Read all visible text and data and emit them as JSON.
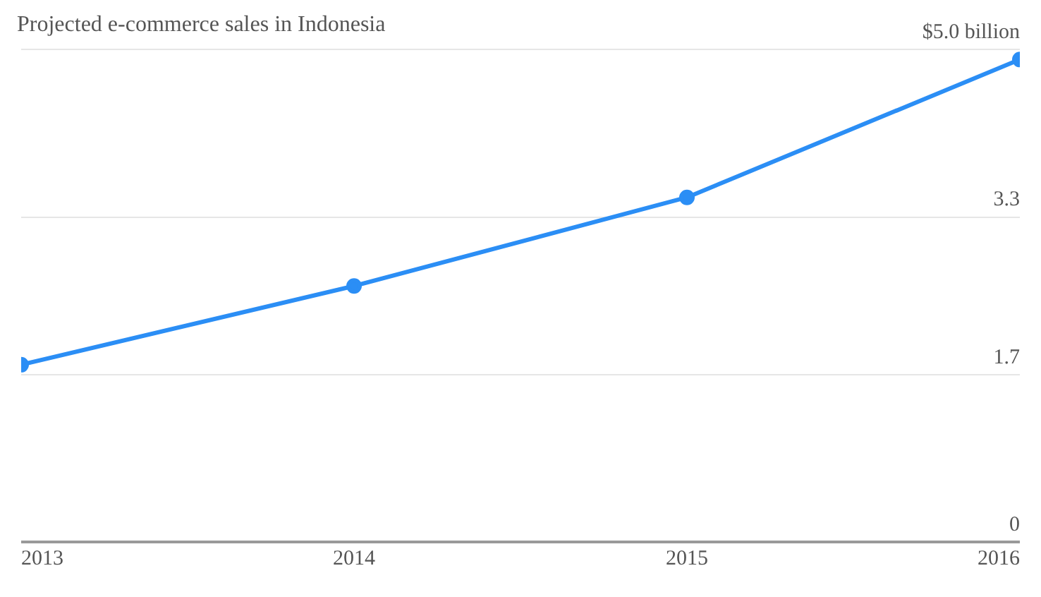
{
  "chart_data": {
    "type": "line",
    "title": "Projected e-commerce sales in Indonesia",
    "x": [
      2013,
      2014,
      2015,
      2016
    ],
    "series": [
      {
        "color": "#2b8ef5",
        "values": [
          1.8,
          2.6,
          3.5,
          4.9
        ]
      }
    ],
    "xlim": [
      2013,
      2016
    ],
    "xticks": [
      2013,
      2014,
      2015,
      2016
    ],
    "ylim": [
      0,
      5
    ],
    "yticks": [
      0,
      1.7,
      3.3,
      {
        "value": 5,
        "label": "$5.0 billion"
      }
    ],
    "grid": "y",
    "legend": false,
    "marker": "circle",
    "line_style": "solid"
  }
}
